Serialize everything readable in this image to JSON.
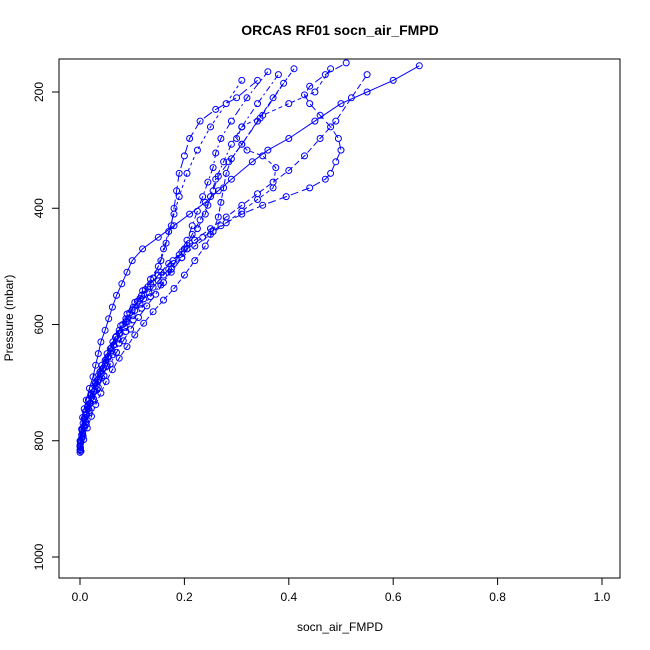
{
  "chart_data": {
    "type": "line",
    "title": "ORCAS RF01 socn_air_FMPD",
    "xlabel": "socn_air_FMPD",
    "ylabel": "Pressure (mbar)",
    "xlim": [
      0,
      1
    ],
    "ylim": [
      1030,
      150
    ],
    "y_inverted": true,
    "xticks": [
      0.0,
      0.2,
      0.4,
      0.6,
      0.8,
      1.0
    ],
    "xtick_labels": [
      "0.0",
      "0.2",
      "0.4",
      "0.6",
      "0.8",
      "1.0"
    ],
    "yticks": [
      200,
      400,
      600,
      800,
      1000
    ],
    "ytick_labels": [
      "200",
      "400",
      "600",
      "800",
      "1000"
    ],
    "grid": false,
    "legend": "none",
    "color": "#0000ff",
    "marker": "open-circle",
    "series": [
      {
        "x": [
          0.0,
          0.002,
          0.003,
          0.005,
          0.008,
          0.012,
          0.018,
          0.025,
          0.03,
          0.035,
          0.04,
          0.048,
          0.055,
          0.062,
          0.07,
          0.08,
          0.09,
          0.1,
          0.12,
          0.15,
          0.18,
          0.21,
          0.24,
          0.265,
          0.29,
          0.33,
          0.36,
          0.4,
          0.45,
          0.5,
          0.55,
          0.6,
          0.65
        ],
        "y": [
          820,
          800,
          780,
          760,
          745,
          730,
          710,
          690,
          670,
          650,
          630,
          610,
          590,
          570,
          550,
          530,
          510,
          490,
          470,
          450,
          430,
          410,
          390,
          370,
          350,
          320,
          300,
          280,
          250,
          220,
          200,
          180,
          155
        ]
      },
      {
        "x": [
          0.001,
          0.004,
          0.008,
          0.013,
          0.02,
          0.028,
          0.036,
          0.045,
          0.055,
          0.065,
          0.075,
          0.088,
          0.1,
          0.115,
          0.13,
          0.15,
          0.17,
          0.195,
          0.22,
          0.25,
          0.28,
          0.31,
          0.34,
          0.37,
          0.4,
          0.43,
          0.46,
          0.49,
          0.52,
          0.55
        ],
        "y": [
          815,
          795,
          775,
          755,
          735,
          715,
          695,
          675,
          655,
          635,
          615,
          595,
          575,
          555,
          535,
          515,
          495,
          475,
          455,
          435,
          415,
          395,
          375,
          355,
          335,
          310,
          280,
          250,
          210,
          170
        ]
      },
      {
        "x": [
          0.0,
          0.003,
          0.006,
          0.01,
          0.016,
          0.024,
          0.032,
          0.042,
          0.052,
          0.063,
          0.075,
          0.088,
          0.102,
          0.118,
          0.135,
          0.155,
          0.178,
          0.205,
          0.235,
          0.27,
          0.31,
          0.35,
          0.395,
          0.44,
          0.47,
          0.48,
          0.49,
          0.5,
          0.495,
          0.48,
          0.46,
          0.44,
          0.43,
          0.44,
          0.47,
          0.51
        ],
        "y": [
          810,
          790,
          770,
          750,
          730,
          710,
          690,
          670,
          650,
          630,
          610,
          590,
          570,
          550,
          530,
          510,
          490,
          470,
          450,
          430,
          410,
          395,
          380,
          365,
          350,
          340,
          320,
          300,
          280,
          260,
          240,
          220,
          205,
          190,
          170,
          150
        ]
      },
      {
        "x": [
          0.001,
          0.005,
          0.01,
          0.016,
          0.023,
          0.031,
          0.04,
          0.05,
          0.06,
          0.072,
          0.085,
          0.1,
          0.115,
          0.132,
          0.15,
          0.17,
          0.195,
          0.22,
          0.25,
          0.28,
          0.31,
          0.34,
          0.37,
          0.375,
          0.35,
          0.32,
          0.3,
          0.31,
          0.35,
          0.4,
          0.45,
          0.48
        ],
        "y": [
          805,
          785,
          765,
          745,
          725,
          705,
          685,
          665,
          645,
          625,
          605,
          585,
          565,
          545,
          525,
          505,
          485,
          465,
          445,
          425,
          405,
          385,
          365,
          330,
          310,
          300,
          280,
          260,
          240,
          220,
          200,
          160
        ]
      },
      {
        "x": [
          0.0,
          0.004,
          0.009,
          0.015,
          0.022,
          0.03,
          0.04,
          0.05,
          0.06,
          0.07,
          0.082,
          0.095,
          0.11,
          0.125,
          0.14,
          0.155,
          0.165,
          0.175,
          0.18,
          0.185,
          0.19,
          0.2,
          0.21,
          0.23,
          0.26,
          0.3,
          0.34
        ],
        "y": [
          800,
          780,
          760,
          740,
          720,
          700,
          680,
          660,
          640,
          620,
          600,
          580,
          560,
          540,
          520,
          490,
          460,
          430,
          400,
          370,
          340,
          310,
          280,
          250,
          230,
          210,
          180
        ]
      },
      {
        "x": [
          0.001,
          0.006,
          0.012,
          0.018,
          0.025,
          0.033,
          0.042,
          0.052,
          0.063,
          0.075,
          0.088,
          0.102,
          0.118,
          0.135,
          0.155,
          0.175,
          0.195,
          0.21,
          0.225,
          0.24,
          0.25,
          0.26,
          0.275,
          0.29,
          0.31,
          0.34,
          0.38
        ],
        "y": [
          812,
          792,
          772,
          752,
          732,
          712,
          692,
          672,
          652,
          632,
          612,
          592,
          572,
          552,
          532,
          510,
          485,
          460,
          435,
          410,
          380,
          350,
          320,
          290,
          260,
          220,
          170
        ]
      },
      {
        "x": [
          0.002,
          0.007,
          0.014,
          0.022,
          0.03,
          0.04,
          0.05,
          0.062,
          0.075,
          0.09,
          0.105,
          0.122,
          0.14,
          0.16,
          0.18,
          0.2,
          0.22,
          0.24,
          0.255,
          0.265,
          0.27,
          0.275,
          0.28,
          0.29,
          0.31,
          0.34,
          0.37,
          0.41
        ],
        "y": [
          818,
          798,
          778,
          758,
          738,
          718,
          698,
          678,
          658,
          638,
          618,
          598,
          578,
          558,
          538,
          515,
          490,
          465,
          440,
          415,
          390,
          365,
          340,
          315,
          290,
          250,
          210,
          160
        ]
      },
      {
        "x": [
          0.0,
          0.005,
          0.011,
          0.018,
          0.026,
          0.035,
          0.046,
          0.058,
          0.07,
          0.083,
          0.097,
          0.112,
          0.128,
          0.145,
          0.16,
          0.175,
          0.19,
          0.205,
          0.215,
          0.225,
          0.235,
          0.245,
          0.255,
          0.26,
          0.27,
          0.29,
          0.32,
          0.36
        ],
        "y": [
          808,
          788,
          768,
          748,
          728,
          708,
          688,
          668,
          648,
          628,
          608,
          588,
          568,
          548,
          528,
          505,
          480,
          455,
          430,
          405,
          380,
          355,
          330,
          305,
          280,
          250,
          210,
          165
        ]
      },
      {
        "x": [
          0.001,
          0.004,
          0.008,
          0.014,
          0.021,
          0.029,
          0.038,
          0.048,
          0.058,
          0.068,
          0.078,
          0.09,
          0.105,
          0.12,
          0.135,
          0.15,
          0.16,
          0.17,
          0.18,
          0.19,
          0.205,
          0.225,
          0.25,
          0.28,
          0.31
        ],
        "y": [
          802,
          782,
          762,
          742,
          722,
          702,
          682,
          662,
          642,
          622,
          602,
          582,
          562,
          542,
          522,
          500,
          470,
          440,
          410,
          380,
          340,
          300,
          260,
          220,
          180
        ]
      },
      {
        "x": [
          0.0,
          0.003,
          0.007,
          0.012,
          0.018,
          0.026,
          0.034,
          0.043,
          0.053,
          0.064,
          0.076,
          0.09,
          0.105,
          0.122,
          0.14,
          0.16,
          0.18,
          0.2,
          0.215,
          0.23,
          0.245,
          0.255,
          0.265,
          0.285,
          0.31,
          0.345,
          0.39
        ],
        "y": [
          816,
          796,
          776,
          756,
          736,
          716,
          696,
          676,
          656,
          636,
          616,
          596,
          576,
          556,
          536,
          515,
          495,
          470,
          445,
          420,
          395,
          370,
          345,
          320,
          290,
          245,
          185
        ]
      }
    ]
  }
}
